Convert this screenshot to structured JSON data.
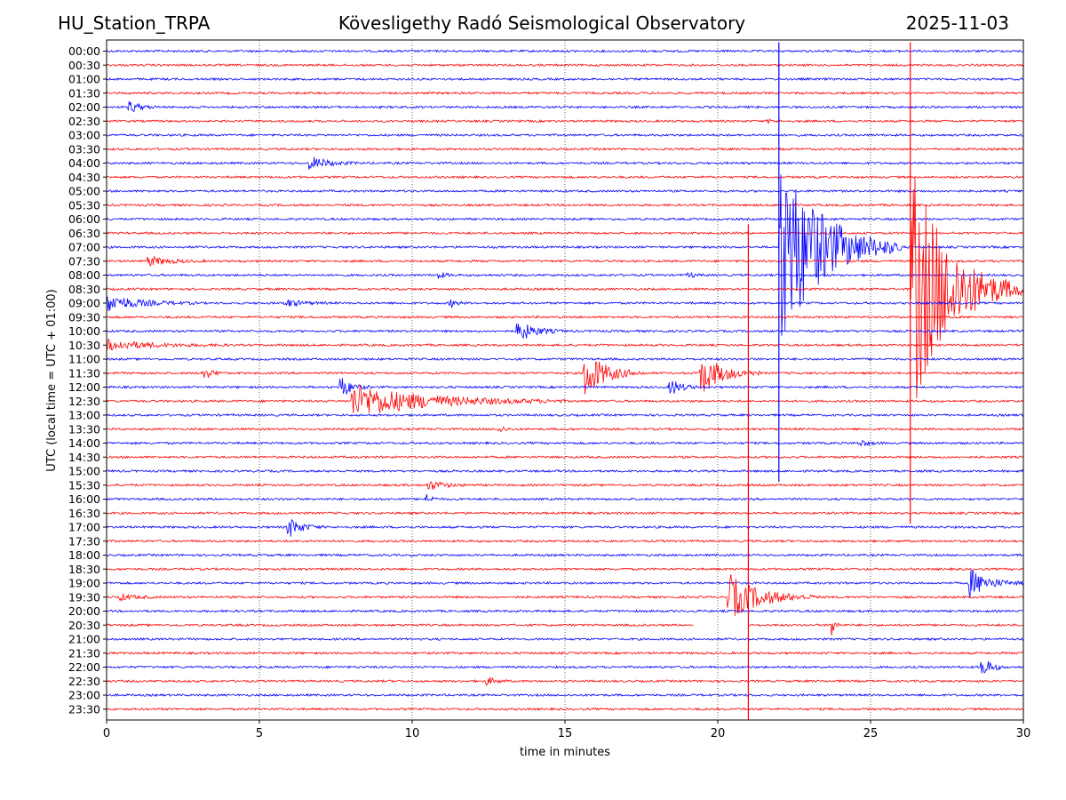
{
  "chart_data": {
    "type": "line",
    "title_left": "HU_Station_TRPA",
    "title_center": "Kövesligethy Radó Seismological Observatory",
    "title_right": "2025-11-03",
    "xlabel": "time in minutes",
    "ylabel": "UTC (local time = UTC + 01:00)",
    "xlim": [
      0,
      30
    ],
    "xticks": [
      "0",
      "5",
      "10",
      "15",
      "20",
      "25",
      "30"
    ],
    "xtick_values": [
      0,
      5,
      10,
      15,
      20,
      25,
      30
    ],
    "grid": "vertical dotted at 5-minute ticks",
    "trace_colors": [
      "#0000ff",
      "#ff0000"
    ],
    "rows": [
      "00:00",
      "00:30",
      "01:00",
      "01:30",
      "02:00",
      "02:30",
      "03:00",
      "03:30",
      "04:00",
      "04:30",
      "05:00",
      "05:30",
      "06:00",
      "06:30",
      "07:00",
      "07:30",
      "08:00",
      "08:30",
      "09:00",
      "09:30",
      "10:00",
      "10:30",
      "11:00",
      "11:30",
      "12:00",
      "12:30",
      "13:00",
      "13:30",
      "14:00",
      "14:30",
      "15:00",
      "15:30",
      "16:00",
      "16:30",
      "17:00",
      "17:30",
      "18:00",
      "18:30",
      "19:00",
      "19:30",
      "20:00",
      "20:30",
      "21:00",
      "21:30",
      "22:00",
      "22:30",
      "23:00",
      "23:30"
    ],
    "events": [
      {
        "row": "02:00",
        "t": 0.7,
        "amp": 8,
        "dur": 1.0
      },
      {
        "row": "02:30",
        "t": 21.6,
        "amp": 3,
        "dur": 0.5
      },
      {
        "row": "04:00",
        "t": 6.6,
        "amp": 9,
        "dur": 1.6
      },
      {
        "row": "07:00",
        "t": 22.0,
        "amp": 120,
        "dur": 4.0
      },
      {
        "row": "07:30",
        "t": 1.3,
        "amp": 6,
        "dur": 2.0
      },
      {
        "row": "08:00",
        "t": 10.8,
        "amp": 6,
        "dur": 0.6
      },
      {
        "row": "08:00",
        "t": 19.0,
        "amp": 4,
        "dur": 0.6
      },
      {
        "row": "08:30",
        "t": 26.3,
        "amp": 150,
        "dur": 3.7
      },
      {
        "row": "09:00",
        "t": 0.0,
        "amp": 10,
        "dur": 3.0
      },
      {
        "row": "09:00",
        "t": 5.8,
        "amp": 5,
        "dur": 1.5
      },
      {
        "row": "09:00",
        "t": 11.2,
        "amp": 6,
        "dur": 0.6
      },
      {
        "row": "10:00",
        "t": 13.4,
        "amp": 14,
        "dur": 1.6
      },
      {
        "row": "10:30",
        "t": 0.0,
        "amp": 6,
        "dur": 4.0
      },
      {
        "row": "11:30",
        "t": 3.1,
        "amp": 10,
        "dur": 0.8
      },
      {
        "row": "11:30",
        "t": 15.6,
        "amp": 30,
        "dur": 2.0
      },
      {
        "row": "11:30",
        "t": 19.4,
        "amp": 26,
        "dur": 2.0
      },
      {
        "row": "12:00",
        "t": 7.6,
        "amp": 16,
        "dur": 1.0
      },
      {
        "row": "12:00",
        "t": 18.4,
        "amp": 12,
        "dur": 1.0
      },
      {
        "row": "12:30",
        "t": 8.0,
        "amp": 20,
        "dur": 7.0
      },
      {
        "row": "13:30",
        "t": 12.8,
        "amp": 5,
        "dur": 0.6
      },
      {
        "row": "14:00",
        "t": 24.6,
        "amp": 5,
        "dur": 0.8
      },
      {
        "row": "15:30",
        "t": 10.5,
        "amp": 6,
        "dur": 1.4
      },
      {
        "row": "16:00",
        "t": 10.4,
        "amp": 7,
        "dur": 0.6
      },
      {
        "row": "17:00",
        "t": 5.9,
        "amp": 14,
        "dur": 1.2
      },
      {
        "row": "19:00",
        "t": 28.2,
        "amp": 18,
        "dur": 1.8
      },
      {
        "row": "19:30",
        "t": 20.3,
        "amp": 28,
        "dur": 3.0
      },
      {
        "row": "19:30",
        "t": 0.4,
        "amp": 4,
        "dur": 1.5
      },
      {
        "row": "20:30",
        "t": 23.7,
        "amp": 24,
        "dur": 0.3
      },
      {
        "row": "22:00",
        "t": 28.6,
        "amp": 16,
        "dur": 0.8
      },
      {
        "row": "22:30",
        "t": 12.4,
        "amp": 6,
        "dur": 0.8
      }
    ],
    "spikes": [
      {
        "t": 22.0,
        "from_row": "00:00",
        "to_row": "15:00",
        "color": "blue"
      },
      {
        "t": 26.3,
        "from_row": "00:00",
        "to_row": "16:30",
        "color": "red"
      },
      {
        "t": 21.0,
        "from_row": "06:30",
        "to_row": "23:30",
        "color": "red"
      }
    ],
    "gap": {
      "row": "20:30",
      "from_t": 19.2,
      "to_t": 21.0
    }
  }
}
